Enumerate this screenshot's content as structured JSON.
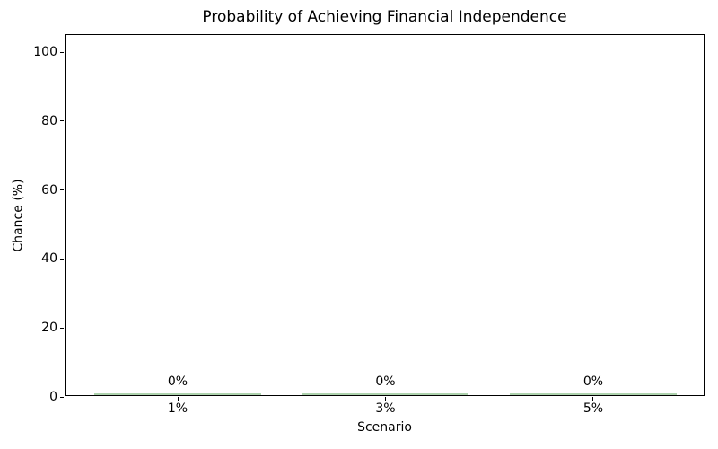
{
  "figure": {
    "background_color": "#ffffff",
    "axis_color": "#000000",
    "text_color": "#000000"
  },
  "chart_data": {
    "type": "bar",
    "title": "Probability of Achieving Financial Independence",
    "xlabel": "Scenario",
    "ylabel": "Chance (%)",
    "categories": [
      "1%",
      "3%",
      "5%"
    ],
    "values": [
      0,
      0,
      0
    ],
    "bar_labels": [
      "0%",
      "0%",
      "0%"
    ],
    "yticks": [
      0,
      20,
      40,
      60,
      80,
      100
    ],
    "ylim": [
      0,
      105
    ],
    "grid": false,
    "legend": null,
    "bar_color": "#aed3ae",
    "bar_width_fraction": 0.8
  }
}
